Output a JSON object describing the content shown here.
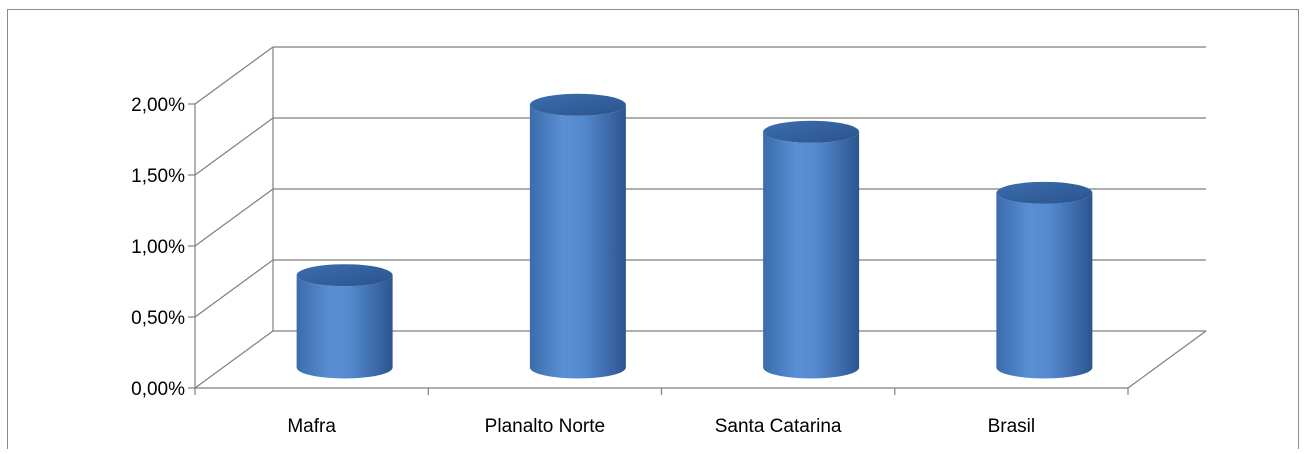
{
  "chart_data": {
    "type": "bar",
    "style": "3d-cylinder",
    "categories": [
      "Mafra",
      "Planalto Norte",
      "Santa Catarina",
      "Brasil"
    ],
    "values": [
      0.0065,
      0.0185,
      0.0166,
      0.0123
    ],
    "y_tick_labels": [
      "0,00%",
      "0,50%",
      "1,00%",
      "1,50%",
      "2,00%"
    ],
    "ylim": [
      0,
      0.02
    ],
    "grid": true,
    "legend": "none",
    "bar_color": "#4a7ebb"
  }
}
